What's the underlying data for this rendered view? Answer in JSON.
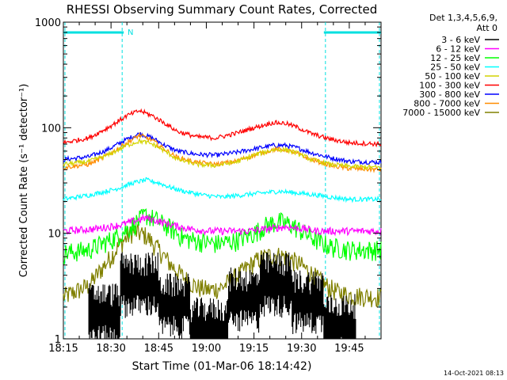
{
  "chart_data": {
    "type": "line",
    "title": "RHESSI Observing Summary Count Rates, Corrected",
    "xlabel": "Start Time (01-Mar-06 18:14:42)",
    "ylabel": "Corrected Count Rate (s⁻¹ detector⁻¹)",
    "yscale": "log",
    "xlim_minutes": [
      0,
      100
    ],
    "ylim": [
      1,
      1000
    ],
    "x_tick_labels": [
      "18:15",
      "18:30",
      "18:45",
      "19:00",
      "19:15",
      "19:30",
      "19:45"
    ],
    "x_tick_minutes": [
      0,
      15,
      30,
      45,
      60,
      75,
      90
    ],
    "y_tick_labels": [
      "1",
      "10",
      "100",
      "1000"
    ],
    "y_tick_values": [
      1,
      10,
      100,
      1000
    ],
    "legend_header": [
      "Det 1,3,4,5,6,9,",
      "Att 0"
    ],
    "legend_position": "right",
    "timestamp": "14-Oct-2021 08:13",
    "night_marker": "N",
    "night_bar_color": "#00e0e0",
    "night_intervals_minutes": [
      [
        0,
        19
      ],
      [
        82,
        100
      ]
    ],
    "series": [
      {
        "name": "3 - 6 keV",
        "color": "#000000",
        "pattern": "black-noise"
      },
      {
        "name": "6 - 12 keV",
        "color": "#ff00ff",
        "x": [
          0,
          10,
          18,
          22,
          26,
          30,
          34,
          40,
          46,
          52,
          58,
          64,
          70,
          76,
          80,
          84,
          90,
          100
        ],
        "y": [
          10.5,
          11,
          12,
          13,
          14,
          13,
          12,
          11,
          10.5,
          10.5,
          10.5,
          11,
          11.5,
          11,
          10.5,
          10.5,
          10.5,
          10.5
        ]
      },
      {
        "name": "12 - 25 keV",
        "color": "#00ff00",
        "x": [
          0,
          8,
          16,
          22,
          26,
          30,
          34,
          38,
          42,
          48,
          54,
          60,
          64,
          68,
          72,
          76,
          80,
          84,
          90,
          100
        ],
        "y": [
          6.5,
          7,
          9,
          12,
          15,
          13,
          11,
          9,
          8.5,
          8,
          8.5,
          10,
          12,
          13,
          12,
          10,
          8.5,
          7.5,
          7,
          7
        ]
      },
      {
        "name": "25 - 50 keV",
        "color": "#00ffff",
        "x": [
          0,
          8,
          16,
          22,
          26,
          30,
          34,
          38,
          44,
          50,
          56,
          62,
          68,
          74,
          80,
          84,
          90,
          100
        ],
        "y": [
          21,
          23,
          26,
          30,
          32,
          30,
          27,
          25,
          23,
          22,
          23,
          24,
          25,
          24,
          23,
          22,
          21,
          21
        ]
      },
      {
        "name": "50 - 100 keV",
        "color": "#d4d400",
        "x": [
          0,
          8,
          14,
          20,
          24,
          28,
          32,
          36,
          42,
          48,
          54,
          60,
          66,
          70,
          74,
          78,
          84,
          90,
          100
        ],
        "y": [
          45,
          48,
          55,
          68,
          75,
          70,
          60,
          50,
          45,
          44,
          47,
          55,
          62,
          62,
          57,
          50,
          45,
          43,
          42
        ]
      },
      {
        "name": "100 - 300 keV",
        "color": "#ff0000",
        "x": [
          0,
          8,
          14,
          20,
          24,
          28,
          32,
          36,
          42,
          48,
          54,
          60,
          66,
          70,
          74,
          78,
          84,
          90,
          100
        ],
        "y": [
          72,
          80,
          100,
          130,
          145,
          130,
          110,
          92,
          82,
          80,
          88,
          100,
          112,
          110,
          100,
          88,
          78,
          72,
          70
        ]
      },
      {
        "name": "300 - 800 keV",
        "color": "#0000ff",
        "x": [
          0,
          8,
          14,
          20,
          24,
          28,
          32,
          36,
          42,
          48,
          54,
          60,
          66,
          70,
          74,
          78,
          84,
          90,
          100
        ],
        "y": [
          50,
          53,
          62,
          78,
          88,
          80,
          68,
          60,
          56,
          55,
          58,
          63,
          68,
          68,
          64,
          58,
          52,
          48,
          47
        ]
      },
      {
        "name": "800 - 7000 keV",
        "color": "#ff8c00",
        "x": [
          0,
          8,
          14,
          20,
          24,
          28,
          32,
          36,
          42,
          48,
          54,
          60,
          66,
          70,
          74,
          78,
          84,
          90,
          100
        ],
        "y": [
          42,
          45,
          55,
          72,
          85,
          76,
          62,
          52,
          47,
          45,
          48,
          55,
          62,
          62,
          56,
          50,
          44,
          41,
          40
        ]
      },
      {
        "name": "7000 - 15000 keV",
        "color": "#808000",
        "x": [
          0,
          8,
          14,
          18,
          22,
          26,
          30,
          34,
          38,
          42,
          46,
          50,
          54,
          58,
          62,
          66,
          70,
          74,
          78,
          82,
          86,
          90,
          100
        ],
        "y": [
          2.5,
          3.2,
          5.5,
          8,
          10.5,
          9.5,
          7,
          5,
          3.8,
          3.1,
          2.9,
          3.1,
          3.8,
          4.8,
          5.8,
          6.3,
          6.0,
          5.2,
          4.2,
          3.3,
          2.8,
          2.6,
          2.5
        ]
      }
    ]
  }
}
